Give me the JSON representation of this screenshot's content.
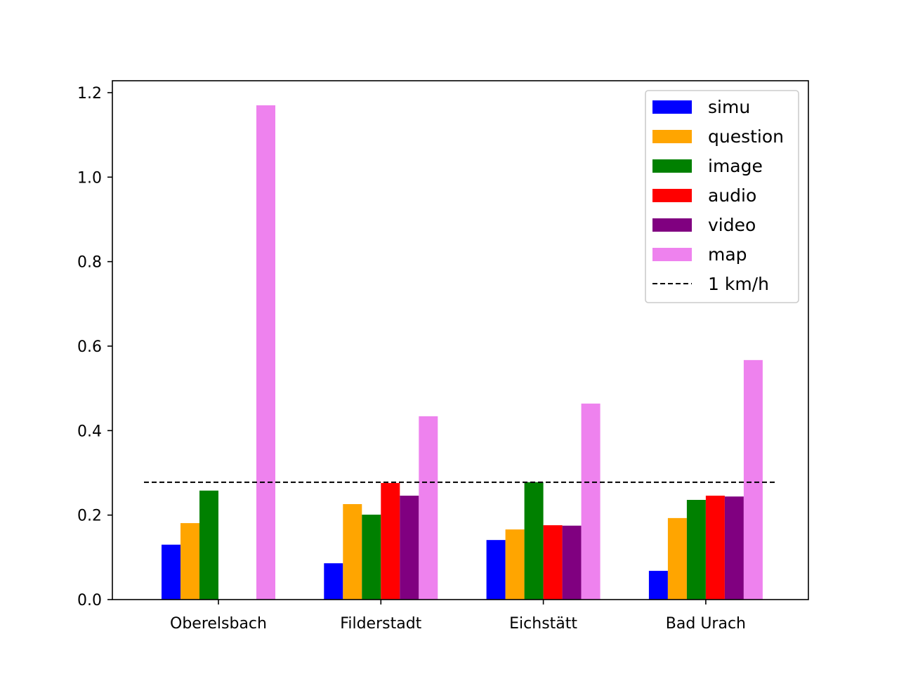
{
  "chart_data": {
    "type": "bar",
    "title": "",
    "xlabel": "",
    "ylabel": "",
    "categories": [
      "Oberelsbach",
      "Filderstadt",
      "Eichstätt",
      "Bad Urach"
    ],
    "ylim": [
      0,
      1.225
    ],
    "yticks": [
      "0.0",
      "0.2",
      "0.4",
      "0.6",
      "0.8",
      "1.0",
      "1.2"
    ],
    "grid": false,
    "legend_position": "upper-right",
    "series": [
      {
        "name": "simu",
        "color": "#0000ff",
        "values": [
          0.13,
          0.086,
          0.141,
          0.068
        ]
      },
      {
        "name": "question",
        "color": "#ffa500",
        "values": [
          0.181,
          0.226,
          0.166,
          0.193
        ]
      },
      {
        "name": "image",
        "color": "#008000",
        "values": [
          0.258,
          0.201,
          0.278,
          0.236
        ]
      },
      {
        "name": "audio",
        "color": "#ff0000",
        "values": [
          null,
          0.276,
          0.176,
          0.246
        ]
      },
      {
        "name": "video",
        "color": "#800080",
        "values": [
          null,
          0.246,
          0.175,
          0.244
        ]
      },
      {
        "name": "map",
        "color": "#ee82ee",
        "values": [
          1.17,
          0.434,
          0.464,
          0.567
        ]
      }
    ],
    "reference_line": {
      "name": "1 km/h",
      "value": 0.2778,
      "style": "dashed",
      "color": "#000000"
    }
  }
}
